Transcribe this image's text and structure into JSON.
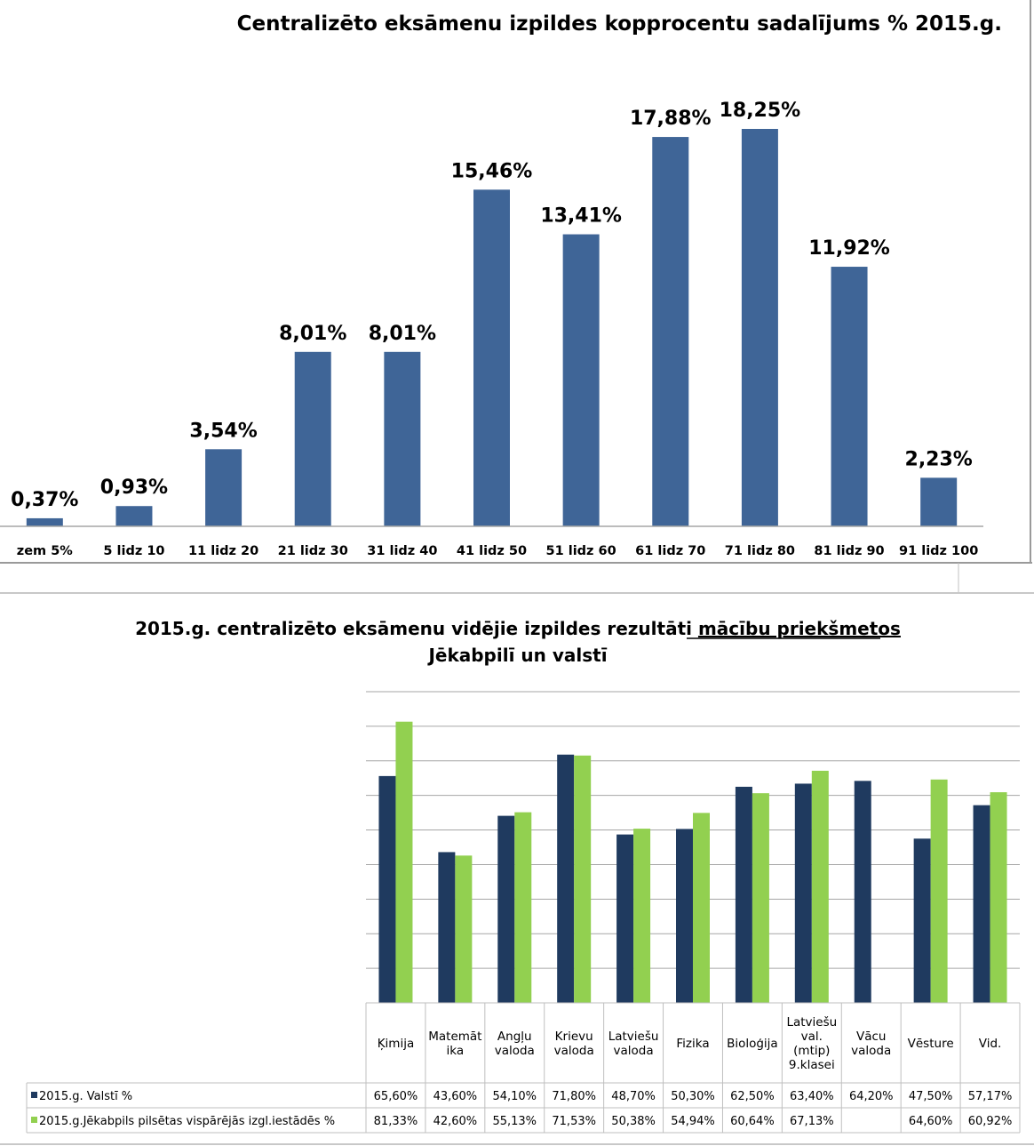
{
  "colors": {
    "bar_primary": "#3f6597",
    "series_national": "#1f3a5f",
    "series_jekabpils": "#92d050",
    "gridline": "#a6a6a6",
    "axis": "#a6a6a6",
    "table_border": "#bfbfbf"
  },
  "chart_data": [
    {
      "type": "bar",
      "title": "Centralizēto eksāmenu  izpildes  kopprocentu sadalījums  % 2015.g.",
      "categories": [
        "zem 5%",
        "5 lidz 10",
        "11 lidz 20",
        "21 lidz 30",
        "31 lidz 40",
        "41 lidz 50",
        "51 lidz 60",
        "61 lidz 70",
        "71 lidz 80",
        "81 lidz 90",
        "91 lidz 100"
      ],
      "values": [
        0.37,
        0.93,
        3.54,
        8.01,
        8.01,
        15.46,
        13.41,
        17.88,
        18.25,
        11.92,
        2.23
      ],
      "data_labels": [
        "0,37%",
        "0,93%",
        "3,54%",
        "8,01%",
        "8,01%",
        "15,46%",
        "13,41%",
        "17,88%",
        "18,25%",
        "11,92%",
        "2,23%"
      ],
      "ylim": [
        0,
        18.25
      ],
      "grid": false,
      "legend": "none"
    },
    {
      "type": "bar",
      "title_part1": "2015.g. centralizēto eksāmenu vidējie  izpildes rezultāti ",
      "title_underlined": "mācību  priekšmetos",
      "title_line2": "Jēkabpilī un valstī",
      "categories": [
        "Ķimija",
        "Matemāt ika",
        "Angļu valoda",
        "Krievu valoda",
        "Latviešu valoda",
        "Fizika",
        "Bioloģija",
        "Latviešu val. (mtip) 9.klasei",
        "Vācu valoda",
        "Vēsture",
        "Vid."
      ],
      "category_lines": [
        [
          "Ķimija"
        ],
        [
          "Matemāt",
          "ika"
        ],
        [
          "Angļu",
          "valoda"
        ],
        [
          "Krievu",
          "valoda"
        ],
        [
          "Latviešu",
          "valoda"
        ],
        [
          "Fizika"
        ],
        [
          "Bioloģija"
        ],
        [
          "Latviešu",
          "val.",
          "(mtip)",
          "9.klasei"
        ],
        [
          "Vācu",
          "valoda"
        ],
        [
          "Vēsture"
        ],
        [
          "Vid."
        ]
      ],
      "series": [
        {
          "name": "2015.g. Valstī  %",
          "values": [
            65.6,
            43.6,
            54.1,
            71.8,
            48.7,
            50.3,
            62.5,
            63.4,
            64.2,
            47.5,
            57.17
          ],
          "labels": [
            "65,60%",
            "43,60%",
            "54,10%",
            "71,80%",
            "48,70%",
            "50,30%",
            "62,50%",
            "63,40%",
            "64,20%",
            "47,50%",
            "57,17%"
          ]
        },
        {
          "name": "2015.g.Jēkabpils pilsētas  vispārējās izgl.iestādēs %",
          "values": [
            81.33,
            42.6,
            55.13,
            71.53,
            50.38,
            54.94,
            60.64,
            67.13,
            null,
            64.6,
            60.92
          ],
          "labels": [
            "81,33%",
            "42,60%",
            "55,13%",
            "71,53%",
            "50,38%",
            "54,94%",
            "60,64%",
            "67,13%",
            "",
            "64,60%",
            "60,92%"
          ]
        }
      ],
      "ylim": [
        0,
        90
      ],
      "grid": true,
      "legend": "data-table-below"
    }
  ]
}
